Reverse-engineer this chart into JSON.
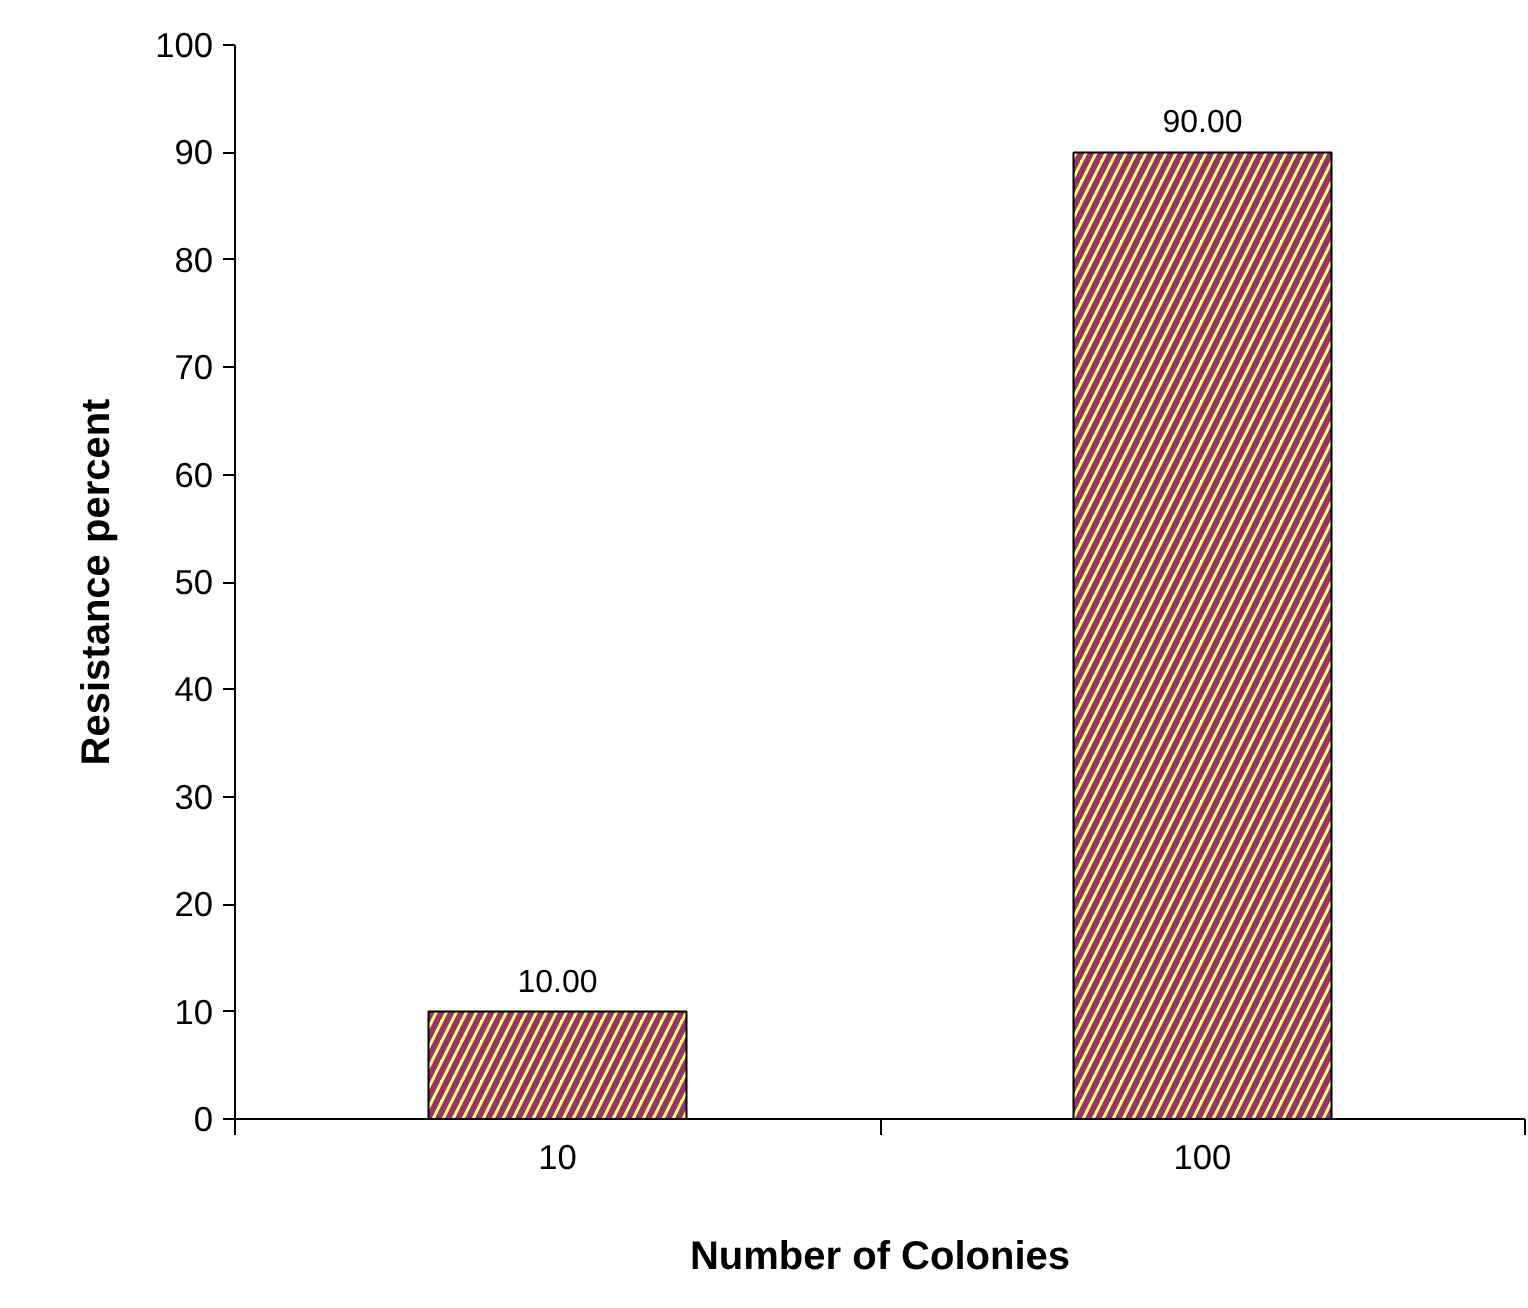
{
  "chart_data": {
    "type": "bar",
    "xlabel": "Number of Colonies",
    "ylabel": "Resistance percent",
    "categories": [
      "10",
      "100"
    ],
    "values": [
      10,
      90
    ],
    "value_labels": [
      "10.00",
      "90.00"
    ],
    "color": "#ffff80",
    "ylim": [
      0,
      100
    ],
    "yticks": [
      0,
      10,
      20,
      30,
      40,
      50,
      60,
      70,
      80,
      90,
      100
    ],
    "grid": false
  }
}
